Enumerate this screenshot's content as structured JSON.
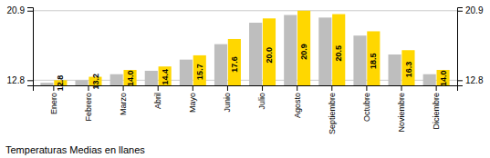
{
  "chart_data": {
    "type": "bar",
    "title": "Temperaturas Medias en llanes",
    "categories": [
      "Enero",
      "Febrero",
      "Marzo",
      "Abril",
      "Mayo",
      "Junio",
      "Julio",
      "Agosto",
      "Septiembre",
      "Octubre",
      "Noviembre",
      "Diciembre"
    ],
    "series": [
      {
        "color": "#BEBEBE",
        "values": [
          12.5,
          12.8,
          13.5,
          13.9,
          15.2,
          17.0,
          19.5,
          20.4,
          20.1,
          18.0,
          15.8,
          13.5
        ]
      },
      {
        "color": "#FFD700",
        "values": [
          12.8,
          13.2,
          14.0,
          14.4,
          15.7,
          17.6,
          20.0,
          20.9,
          20.5,
          18.5,
          16.3,
          14.0
        ],
        "value_labels": [
          "12.8",
          "13.2",
          "14.0",
          "14.4",
          "15.7",
          "17.6",
          "20.0",
          "20.9",
          "20.5",
          "18.5",
          "16.3",
          "14.0"
        ],
        "data_labels": true
      }
    ],
    "ylim": [
      12.2,
      21.3
    ],
    "yticks": [
      12.8,
      20.9
    ],
    "y2lim": [
      12.2,
      21.3
    ],
    "y2ticks": [
      12.8,
      20.9
    ],
    "grid": true
  }
}
